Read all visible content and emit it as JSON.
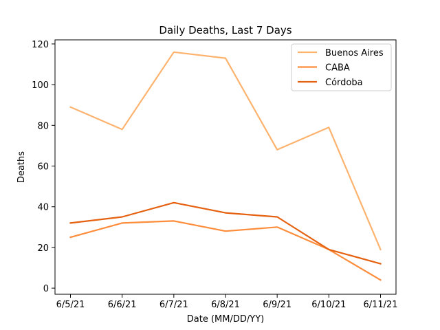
{
  "chart_data": {
    "type": "line",
    "title": "Daily Deaths, Last 7 Days",
    "xlabel": "Date (MM/DD/YY)",
    "ylabel": "Deaths",
    "categories": [
      "6/5/21",
      "6/6/21",
      "6/7/21",
      "6/8/21",
      "6/9/21",
      "6/10/21",
      "6/11/21"
    ],
    "ylim": [
      -3,
      122
    ],
    "yticks": [
      0,
      20,
      40,
      60,
      80,
      100,
      120
    ],
    "grid": false,
    "legend_position": "top-right",
    "series": [
      {
        "name": "Buenos Aires",
        "color": "#fdb26e",
        "values": [
          89,
          78,
          116,
          113,
          68,
          79,
          19
        ]
      },
      {
        "name": "CABA",
        "color": "#fd8c3b",
        "values": [
          25,
          32,
          33,
          28,
          30,
          19,
          4
        ]
      },
      {
        "name": "Córdoba",
        "color": "#e5600f",
        "values": [
          32,
          35,
          42,
          37,
          35,
          19,
          12
        ]
      }
    ]
  }
}
